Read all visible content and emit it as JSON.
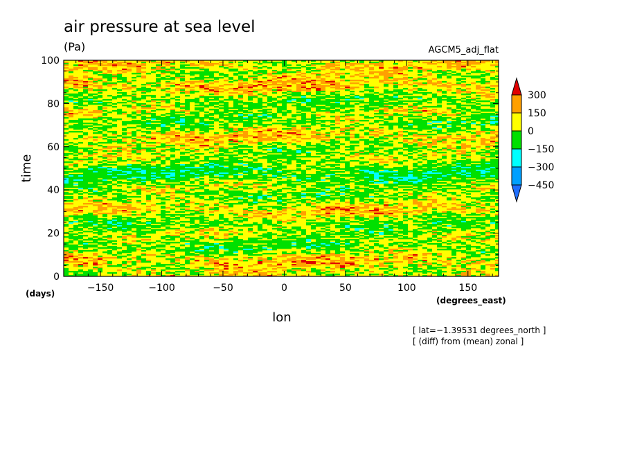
{
  "chart_data": {
    "type": "heatmap",
    "title": "air pressure at sea level",
    "units": "(Pa)",
    "subtitle_right": "AGCM5_adj_flat",
    "xlabel": "lon",
    "xunits": "(degrees_east)",
    "ylabel": "time",
    "yunits": "(days)",
    "xlim": [
      -180,
      175
    ],
    "ylim": [
      0,
      100
    ],
    "xticks": [
      -150,
      -100,
      -50,
      0,
      50,
      100,
      150
    ],
    "xtick_labels": [
      "−150",
      "−100",
      "−50",
      "0",
      "50",
      "100",
      "150"
    ],
    "yticks": [
      0,
      20,
      40,
      60,
      80,
      100
    ],
    "ytick_labels": [
      "0",
      "20",
      "40",
      "60",
      "80",
      "100"
    ],
    "annotations": [
      "[ lat=−1.39531 degrees_north ]",
      "[ (diff) from (mean) zonal ]"
    ],
    "colorbar": {
      "levels": [
        -450,
        -300,
        -150,
        0,
        150,
        300
      ],
      "level_labels": [
        "−450",
        "−300",
        "−150",
        "0",
        "150",
        "300"
      ],
      "colors": [
        "#1e6eff",
        "#00a0ff",
        "#00ffff",
        "#00e000",
        "#ffff00",
        "#ffa000",
        "#e00000"
      ],
      "extend": "both"
    },
    "grid": false
  }
}
